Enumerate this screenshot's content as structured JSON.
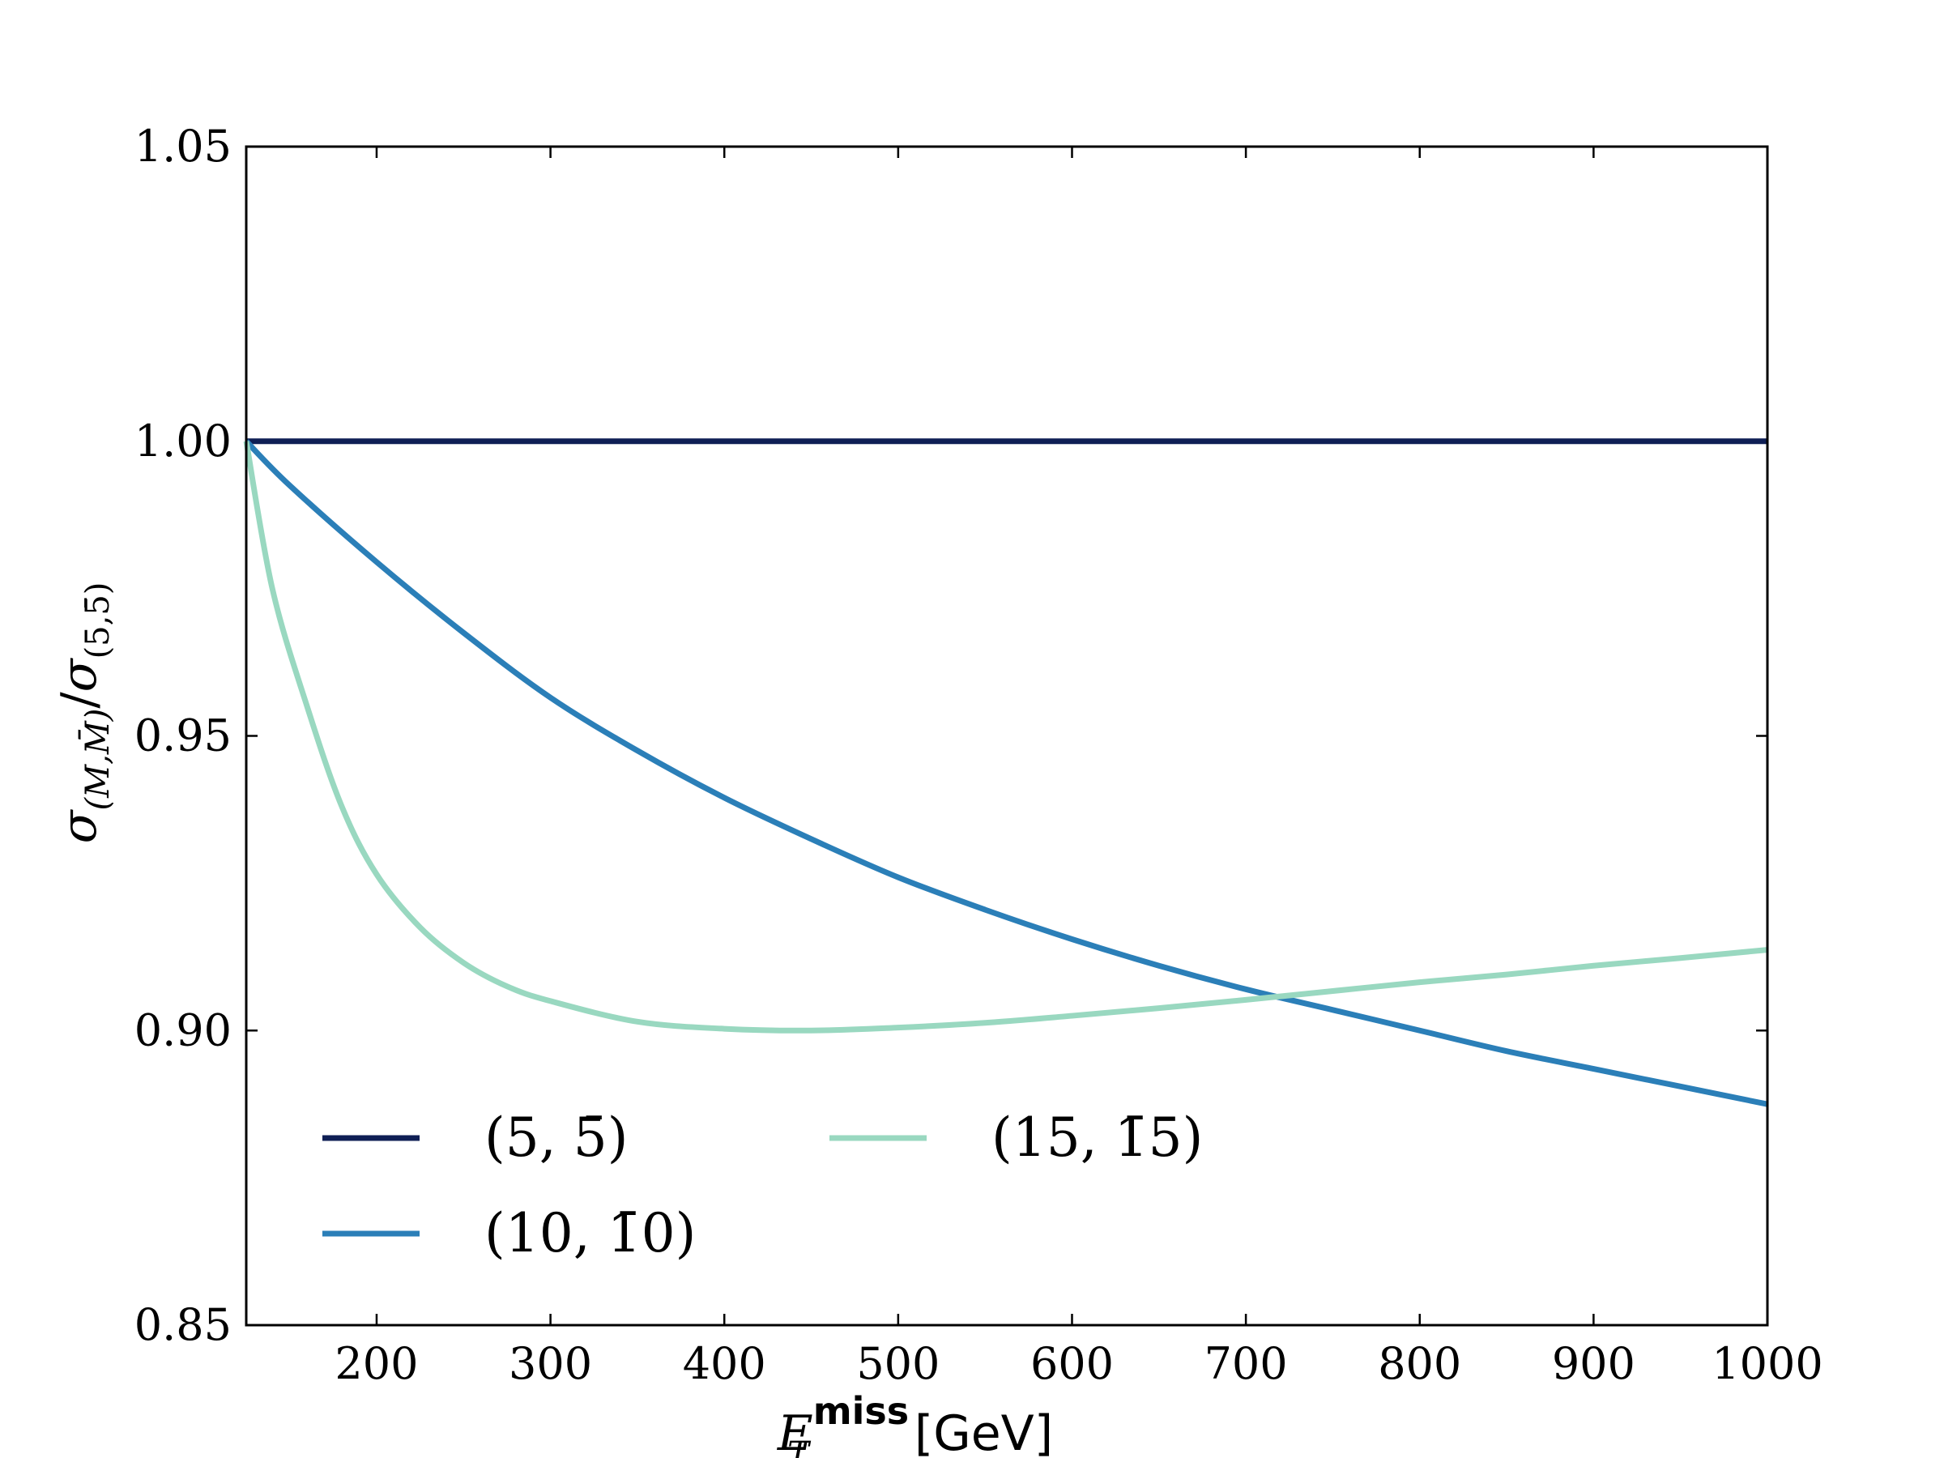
{
  "chart_data": {
    "type": "line",
    "title": "",
    "xlabel": {
      "symbol": "E",
      "superscript": "miss",
      "subscript": "T",
      "unit": "[GeV]"
    },
    "ylabel": {
      "numerator": "σ",
      "numerator_sub": "(M,M̄)",
      "slash": "/",
      "denominator": "σ",
      "denominator_sub": "(5,5̄)"
    },
    "xlim": [
      125,
      1000
    ],
    "ylim": [
      0.85,
      1.05
    ],
    "xticks": [
      200,
      300,
      400,
      500,
      600,
      700,
      800,
      900,
      1000
    ],
    "xtick_labels": [
      "200",
      "300",
      "400",
      "500",
      "600",
      "700",
      "800",
      "900",
      "1000"
    ],
    "yticks": [
      0.85,
      0.9,
      0.95,
      1.0,
      1.05
    ],
    "ytick_labels": [
      "0.85",
      "0.90",
      "0.95",
      "1.00",
      "1.05"
    ],
    "grid": false,
    "legend_position": "lower-left",
    "legend_columns": 2,
    "series": [
      {
        "name": "(5, 5̄)",
        "color": "#0f1f55",
        "x": [
          125,
          200,
          300,
          400,
          500,
          600,
          700,
          800,
          900,
          1000
        ],
        "y": [
          1.0,
          1.0,
          1.0,
          1.0,
          1.0,
          1.0,
          1.0,
          1.0,
          1.0,
          1.0
        ]
      },
      {
        "name": "(10, 1̄0)",
        "color": "#2b7fb8",
        "x": [
          125,
          150,
          200,
          250,
          300,
          350,
          400,
          450,
          500,
          550,
          600,
          650,
          700,
          750,
          800,
          850,
          900,
          950,
          1000
        ],
        "y": [
          1.0,
          0.9925,
          0.9795,
          0.9675,
          0.9565,
          0.9475,
          0.9395,
          0.9325,
          0.926,
          0.9205,
          0.9155,
          0.911,
          0.907,
          0.9035,
          0.9,
          0.8965,
          0.8935,
          0.8905,
          0.8875
        ]
      },
      {
        "name": "(15, 1̄5)",
        "color": "#99d8c0",
        "x": [
          125,
          140,
          160,
          180,
          200,
          225,
          250,
          275,
          300,
          350,
          400,
          450,
          500,
          550,
          600,
          650,
          700,
          750,
          800,
          850,
          900,
          950,
          1000
        ],
        "y": [
          1.0,
          0.975,
          0.955,
          0.938,
          0.9265,
          0.9175,
          0.9115,
          0.9075,
          0.905,
          0.9015,
          0.9003,
          0.9,
          0.9005,
          0.9013,
          0.9025,
          0.9038,
          0.9052,
          0.9067,
          0.9082,
          0.9095,
          0.911,
          0.9123,
          0.9137
        ]
      }
    ]
  }
}
